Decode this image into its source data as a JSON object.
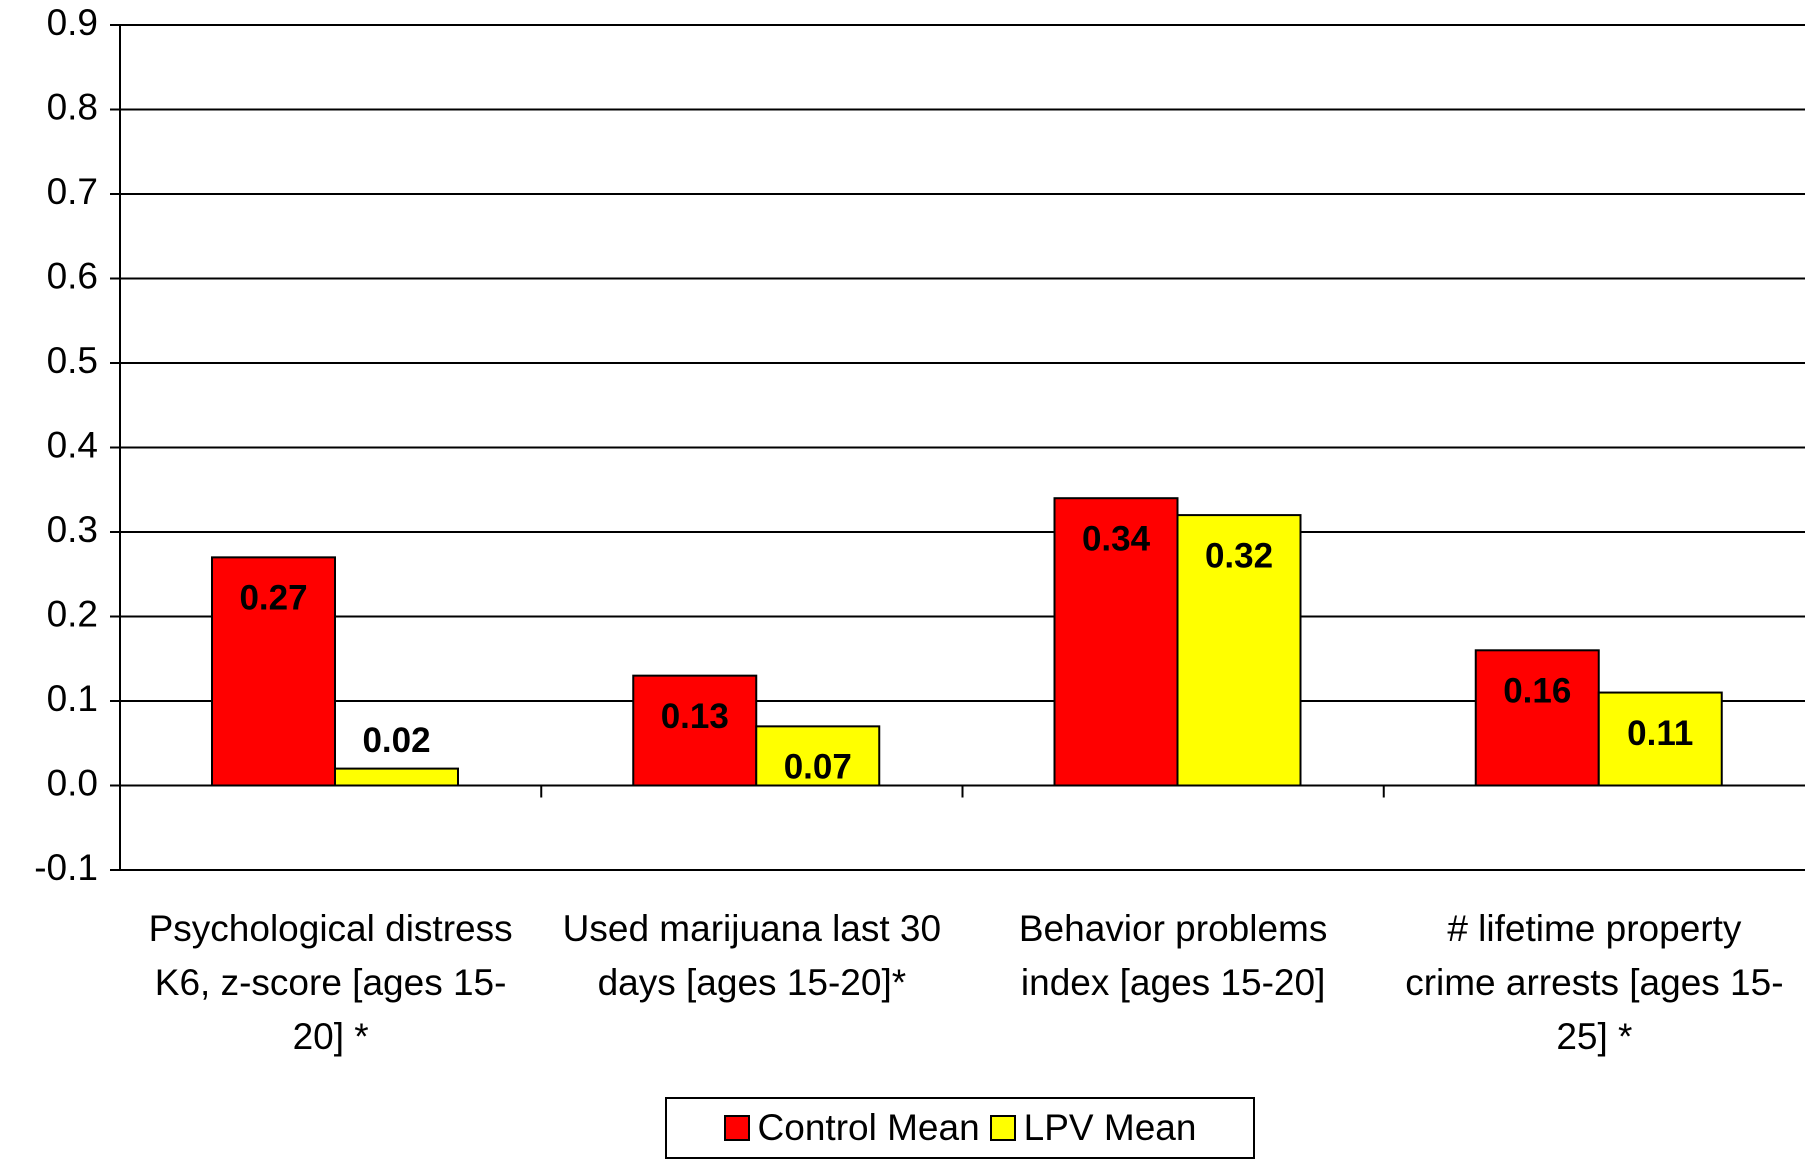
{
  "chart_data": {
    "type": "bar",
    "categories": [
      "Psychological distress K6, z-score [ages 15-20] *",
      "Used marijuana last 30 days [ages 15-20]*",
      "Behavior problems index [ages 15-20]",
      "# lifetime property crime arrests [ages 15-25] *"
    ],
    "series": [
      {
        "name": "Control Mean",
        "color": "#ff0000",
        "values": [
          0.27,
          0.13,
          0.34,
          0.16
        ]
      },
      {
        "name": "LPV Mean",
        "color": "#ffff00",
        "values": [
          0.02,
          0.07,
          0.32,
          0.11
        ]
      }
    ],
    "ylim": [
      -0.1,
      0.9
    ],
    "yticks": [
      -0.1,
      {
        "value": 0,
        "label": "0.0"
      },
      0.1,
      0.2,
      0.3,
      0.4,
      0.5,
      0.6,
      0.7,
      0.8,
      0.9
    ],
    "grid": true,
    "legend": "bottom"
  }
}
